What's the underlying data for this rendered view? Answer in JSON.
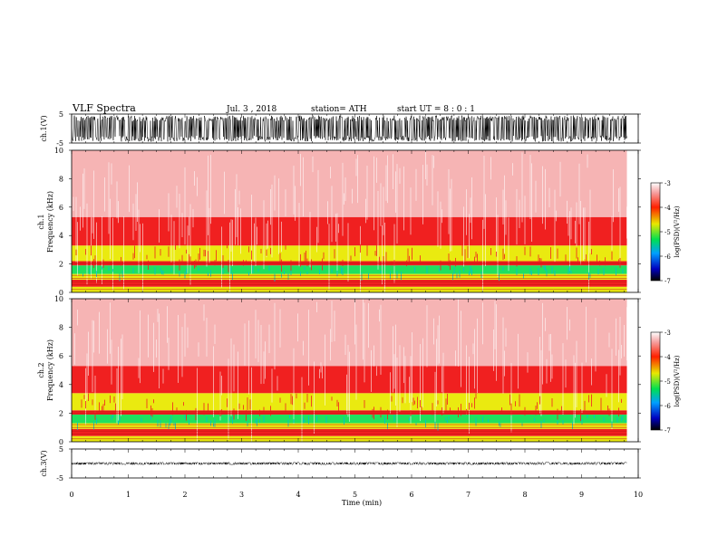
{
  "header": {
    "title": "VLF  Spectra",
    "date": "Jul.  3  , 2018",
    "station": "station= ATH",
    "start": "start  UT  =    8  : 0   : 1"
  },
  "chart_data": [
    {
      "type": "line",
      "panel": "ch1-waveform",
      "ylabel": "ch.1(V)",
      "ylim": [
        -5,
        5
      ],
      "yticks": [
        "5",
        "-5"
      ],
      "x_range_min": [
        0,
        9.8
      ],
      "amplitude_v": 4.5
    },
    {
      "type": "heatmap",
      "panel": "ch1-spectrogram",
      "ylabel_top": "ch.1",
      "ylabel": "Frequency  (kHz)",
      "ylim": [
        0,
        10
      ],
      "yticks": [
        "0",
        "2",
        "4",
        "6",
        "8",
        "10"
      ],
      "x_range_min": [
        0,
        9.8
      ],
      "colorbar": {
        "label": "log(PSD)(V²/Hz)",
        "range": [
          -7,
          -3
        ],
        "ticks": [
          "-3",
          "-4",
          "-5",
          "-6",
          "-7"
        ]
      },
      "bands_khz": [
        {
          "from": 0.0,
          "to": 0.4,
          "level": "yellow"
        },
        {
          "from": 0.4,
          "to": 0.9,
          "level": "red"
        },
        {
          "from": 0.9,
          "to": 1.3,
          "level": "yellow"
        },
        {
          "from": 1.3,
          "to": 1.9,
          "level": "green"
        },
        {
          "from": 1.9,
          "to": 2.2,
          "level": "red"
        },
        {
          "from": 2.2,
          "to": 3.3,
          "level": "yellow"
        },
        {
          "from": 3.3,
          "to": 5.3,
          "level": "red"
        },
        {
          "from": 5.3,
          "to": 10.0,
          "level": "light-red"
        }
      ]
    },
    {
      "type": "heatmap",
      "panel": "ch2-spectrogram",
      "ylabel_top": "ch.2",
      "ylabel": "Frequency  (kHz)",
      "ylim": [
        0,
        10
      ],
      "yticks": [
        "0",
        "2",
        "4",
        "6",
        "8",
        "10"
      ],
      "x_range_min": [
        0,
        9.8
      ],
      "colorbar": {
        "label": "log(PSD)(V²/Hz)",
        "range": [
          -7,
          -3
        ],
        "ticks": [
          "-3",
          "-4",
          "-5",
          "-6",
          "-7"
        ]
      },
      "bands_khz": [
        {
          "from": 0.0,
          "to": 0.4,
          "level": "yellow"
        },
        {
          "from": 0.4,
          "to": 0.9,
          "level": "red"
        },
        {
          "from": 0.9,
          "to": 1.3,
          "level": "yellow"
        },
        {
          "from": 1.3,
          "to": 1.9,
          "level": "green"
        },
        {
          "from": 1.9,
          "to": 2.2,
          "level": "red"
        },
        {
          "from": 2.2,
          "to": 3.4,
          "level": "yellow"
        },
        {
          "from": 3.4,
          "to": 5.3,
          "level": "red"
        },
        {
          "from": 5.3,
          "to": 10.0,
          "level": "light-red"
        }
      ]
    },
    {
      "type": "line",
      "panel": "ch3-waveform",
      "ylabel": "ch.3(V)",
      "ylim": [
        -5,
        5
      ],
      "yticks": [
        "5",
        "-5"
      ],
      "x_range_min": [
        0,
        9.8
      ],
      "amplitude_v": 0.4,
      "xlabel": "Time  (min)",
      "xlim": [
        0,
        10
      ],
      "xticks": [
        "0",
        "1",
        "2",
        "3",
        "4",
        "5",
        "6",
        "7",
        "8",
        "9",
        "10"
      ]
    }
  ],
  "colors": {
    "light-red": "#f6b4b4",
    "red": "#f02020",
    "yellow": "#eaea10",
    "green": "#20e060",
    "cyan": "#00c0d0"
  }
}
